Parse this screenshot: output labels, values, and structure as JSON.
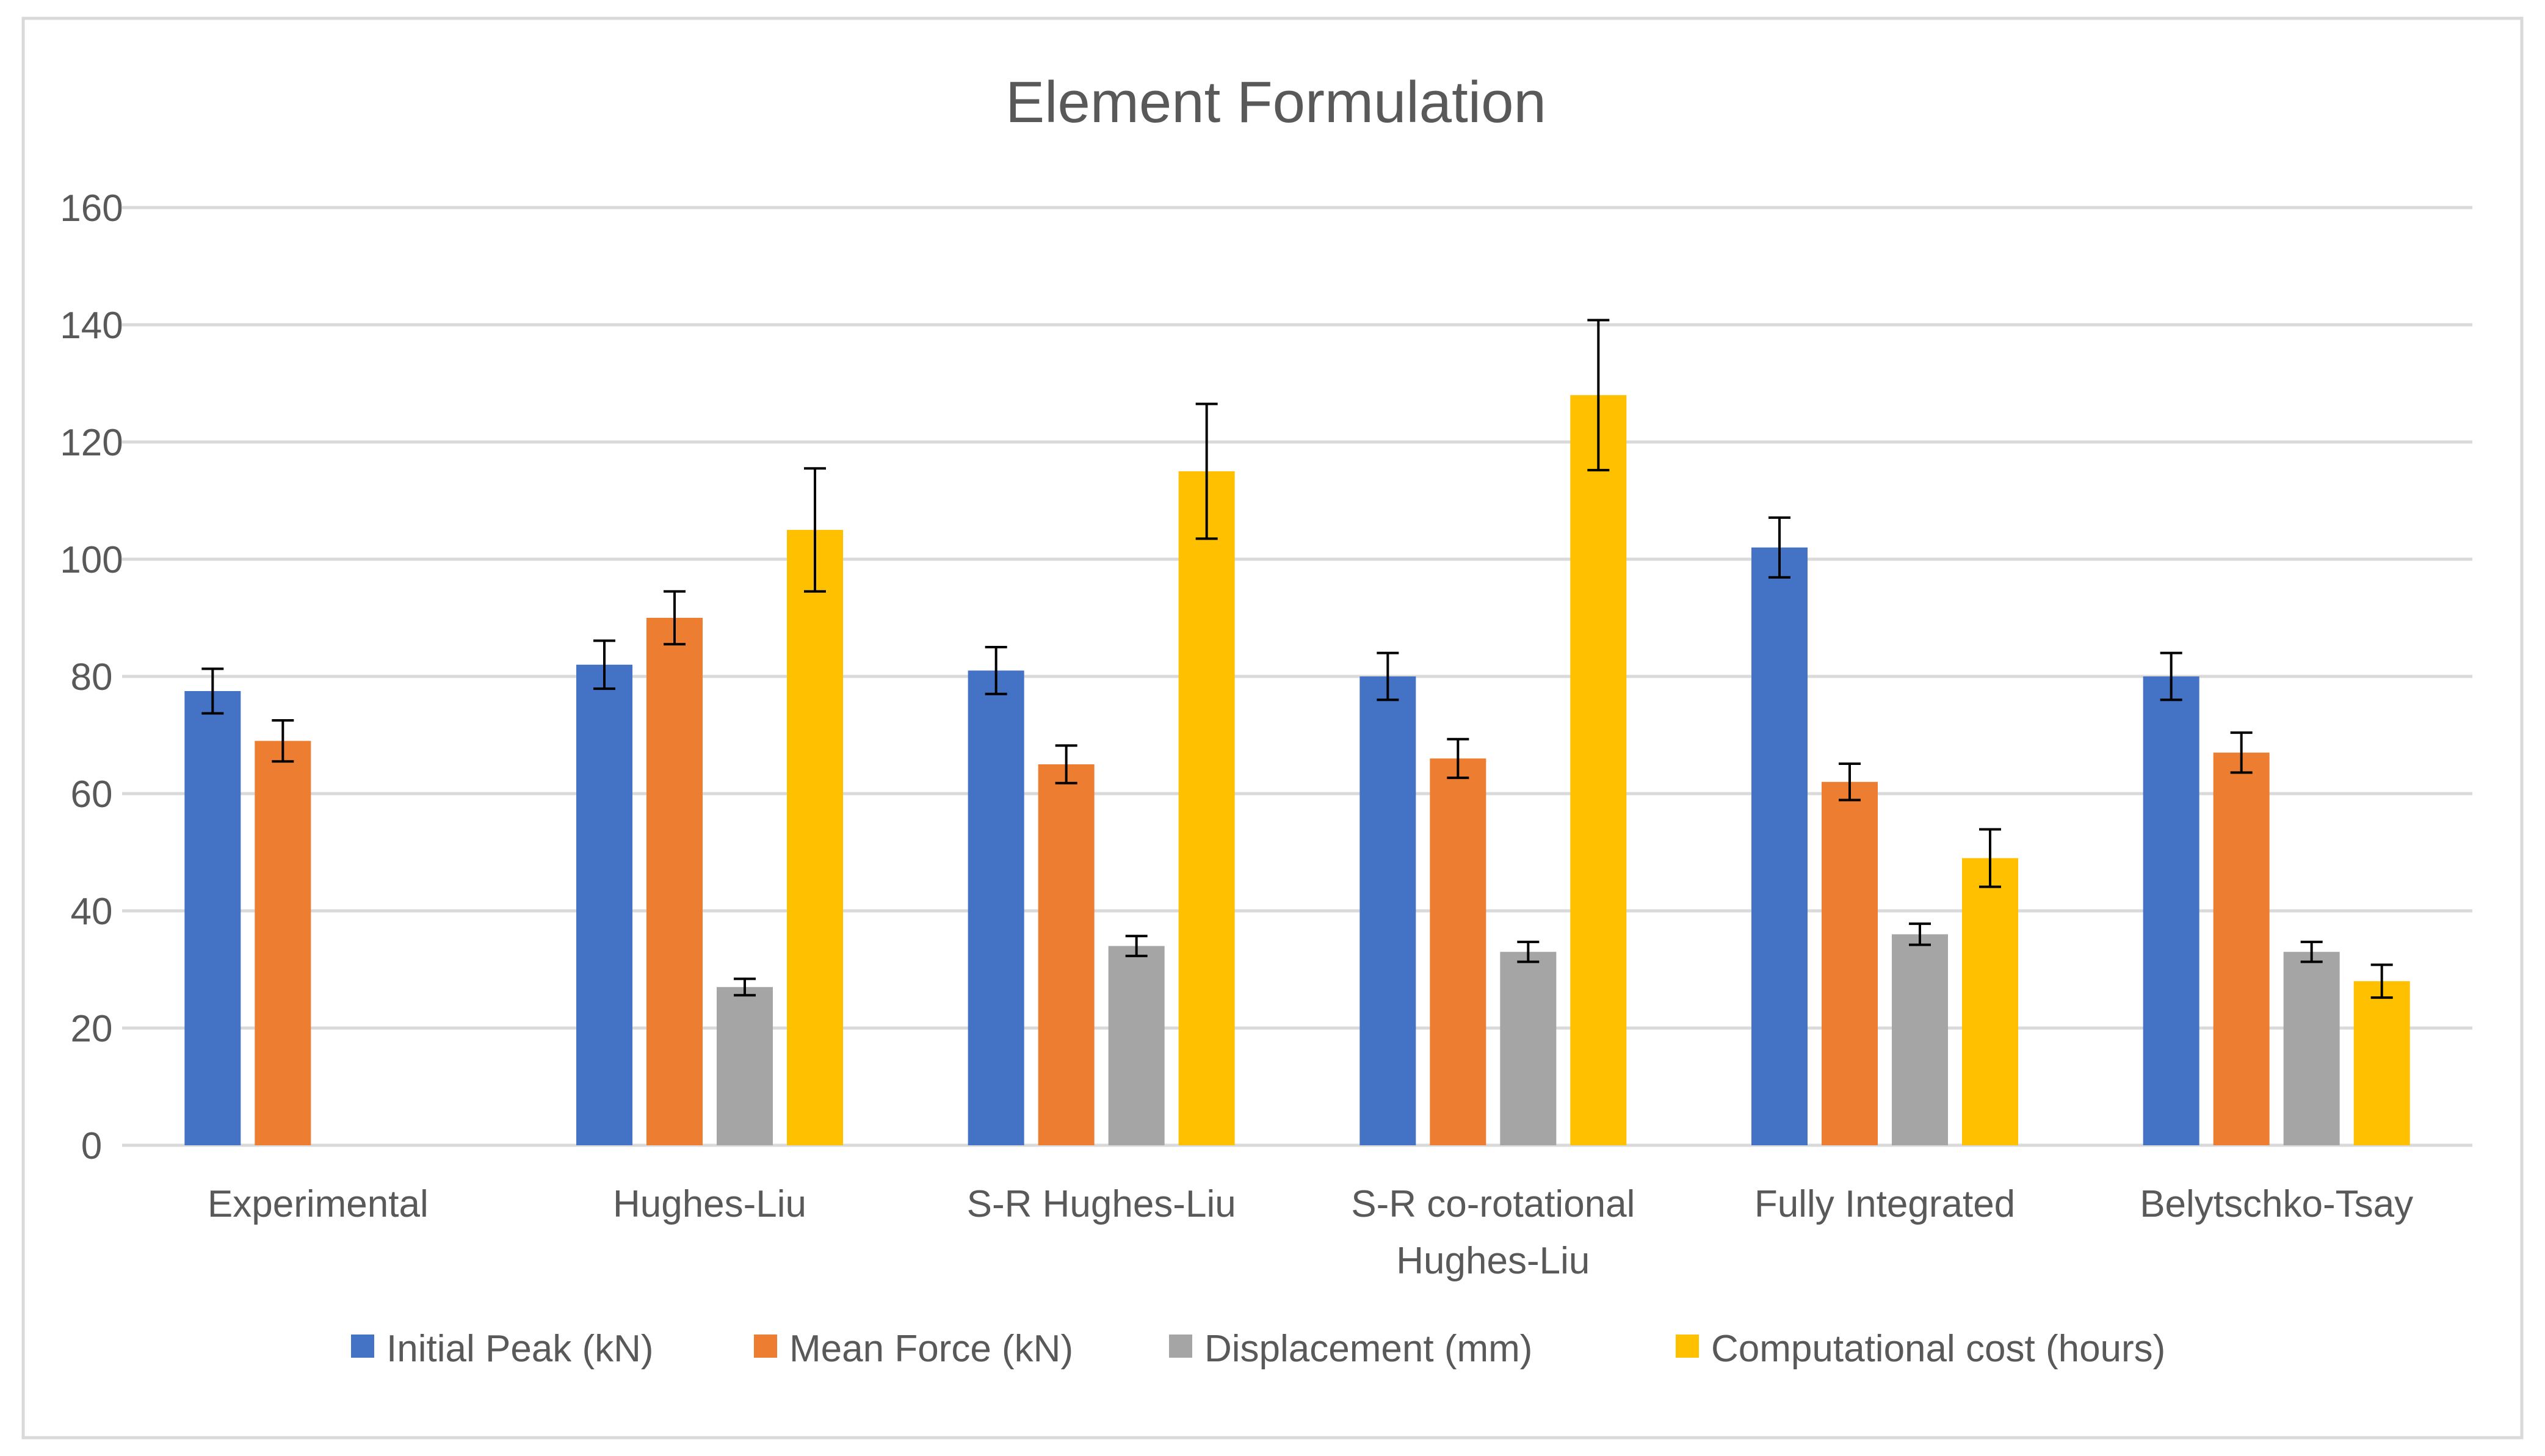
{
  "chart_data": {
    "type": "bar",
    "title": "Element Formulation",
    "xlabel": "",
    "ylabel": "",
    "ylim": [
      0,
      160
    ],
    "yticks": [
      0,
      20,
      40,
      60,
      80,
      100,
      120,
      140,
      160
    ],
    "grid": true,
    "legend_position": "bottom",
    "categories": [
      [
        "Experimental"
      ],
      [
        "Hughes-Liu"
      ],
      [
        "S-R Hughes-Liu"
      ],
      [
        "S-R co-rotational",
        "Hughes-Liu"
      ],
      [
        "Fully Integrated"
      ],
      [
        "Belytschko-Tsay"
      ]
    ],
    "series": [
      {
        "name": "Initial Peak (kN)",
        "color": "#4472c4",
        "values": [
          77.5,
          82,
          81,
          80,
          102,
          80
        ],
        "errors": [
          3.8,
          4.1,
          4.0,
          4.0,
          5.1,
          4.0
        ]
      },
      {
        "name": "Mean Force (kN)",
        "color": "#ed7d31",
        "values": [
          69,
          90,
          65,
          66,
          62,
          67
        ],
        "errors": [
          3.5,
          4.5,
          3.2,
          3.3,
          3.1,
          3.4
        ]
      },
      {
        "name": "Displacement (mm)",
        "color": "#a5a5a5",
        "values": [
          null,
          27,
          34,
          33,
          36,
          33
        ],
        "errors": [
          null,
          1.4,
          1.7,
          1.7,
          1.8,
          1.7
        ]
      },
      {
        "name": "Computational cost (hours)",
        "color": "#ffc000",
        "values": [
          null,
          105,
          115,
          128,
          49,
          28
        ],
        "errors": [
          null,
          10.5,
          11.5,
          12.8,
          4.9,
          2.8
        ]
      }
    ]
  }
}
